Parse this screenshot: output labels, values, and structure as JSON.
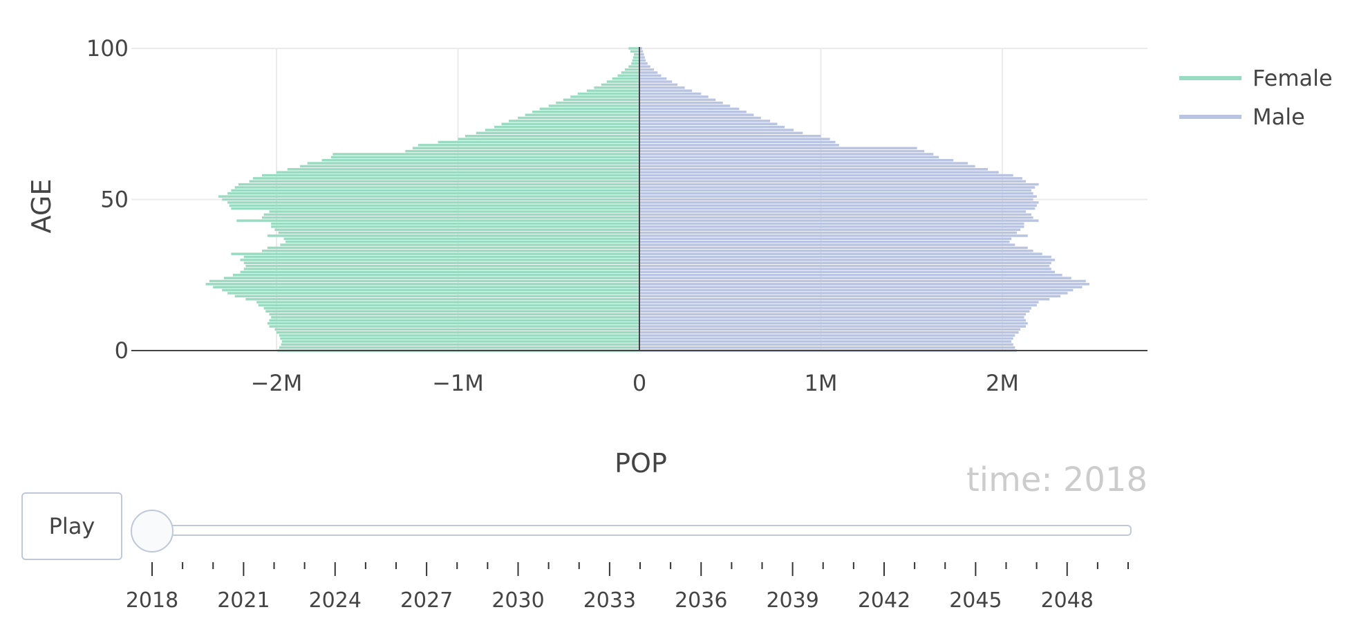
{
  "chart_data": {
    "type": "bar",
    "orientation": "horizontal",
    "barmode": "overlay",
    "xlabel": "POP",
    "ylabel": "AGE",
    "xlim": [
      -2800000,
      2800000
    ],
    "ylim": [
      0,
      100
    ],
    "x_ticks": [
      -2000000,
      -1000000,
      0,
      1000000,
      2000000
    ],
    "x_tick_labels": [
      "−2M",
      "−1M",
      "0",
      "1M",
      "2M"
    ],
    "y_ticks": [
      0,
      50,
      100
    ],
    "y_tick_labels": [
      "0",
      "50",
      "100"
    ],
    "grid": true,
    "legend_position": "top-right",
    "ages": [
      0,
      1,
      2,
      3,
      4,
      5,
      6,
      7,
      8,
      9,
      10,
      11,
      12,
      13,
      14,
      15,
      16,
      17,
      18,
      19,
      20,
      21,
      22,
      23,
      24,
      25,
      26,
      27,
      28,
      29,
      30,
      31,
      32,
      33,
      34,
      35,
      36,
      37,
      38,
      39,
      40,
      41,
      42,
      43,
      44,
      45,
      46,
      47,
      48,
      49,
      50,
      51,
      52,
      53,
      54,
      55,
      56,
      57,
      58,
      59,
      60,
      61,
      62,
      63,
      64,
      65,
      66,
      67,
      68,
      69,
      70,
      71,
      72,
      73,
      74,
      75,
      76,
      77,
      78,
      79,
      80,
      81,
      82,
      83,
      84,
      85,
      86,
      87,
      88,
      89,
      90,
      91,
      92,
      93,
      94,
      95,
      96,
      97,
      98,
      99,
      100
    ],
    "series": [
      {
        "name": "Female",
        "color": "#99dbc0",
        "values": [
          -1995000,
          -1985000,
          -1975000,
          -1970000,
          -1980000,
          -1985000,
          -2000000,
          -2010000,
          -2040000,
          -2050000,
          -2040000,
          -2030000,
          -2040000,
          -2060000,
          -2070000,
          -2100000,
          -2110000,
          -2170000,
          -2230000,
          -2270000,
          -2300000,
          -2350000,
          -2390000,
          -2370000,
          -2290000,
          -2240000,
          -2200000,
          -2180000,
          -2170000,
          -2180000,
          -2200000,
          -2180000,
          -2250000,
          -2080000,
          -2050000,
          -1980000,
          -1950000,
          -1960000,
          -2050000,
          -1990000,
          -2010000,
          -2030000,
          -2030000,
          -2220000,
          -2080000,
          -2070000,
          -2040000,
          -2250000,
          -2260000,
          -2270000,
          -2300000,
          -2320000,
          -2270000,
          -2250000,
          -2230000,
          -2210000,
          -2150000,
          -2130000,
          -2080000,
          -2000000,
          -1940000,
          -1870000,
          -1830000,
          -1750000,
          -1700000,
          -1690000,
          -1290000,
          -1250000,
          -1220000,
          -1110000,
          -1000000,
          -960000,
          -900000,
          -850000,
          -800000,
          -760000,
          -720000,
          -670000,
          -630000,
          -590000,
          -550000,
          -500000,
          -460000,
          -420000,
          -380000,
          -340000,
          -290000,
          -250000,
          -210000,
          -180000,
          -150000,
          -120000,
          -100000,
          -80000,
          -60000,
          -45000,
          -40000,
          -35000,
          -30000,
          -50000,
          -60000
        ]
      },
      {
        "name": "Male",
        "color": "#b9c3e2",
        "values": [
          2080000,
          2070000,
          2060000,
          2050000,
          2060000,
          2070000,
          2090000,
          2100000,
          2130000,
          2140000,
          2130000,
          2120000,
          2130000,
          2150000,
          2160000,
          2190000,
          2200000,
          2260000,
          2320000,
          2360000,
          2390000,
          2440000,
          2480000,
          2460000,
          2380000,
          2330000,
          2290000,
          2270000,
          2260000,
          2270000,
          2290000,
          2270000,
          2220000,
          2170000,
          2140000,
          2070000,
          2040000,
          2050000,
          2140000,
          2080000,
          2100000,
          2120000,
          2120000,
          2200000,
          2170000,
          2160000,
          2130000,
          2180000,
          2190000,
          2200000,
          2170000,
          2190000,
          2170000,
          2160000,
          2180000,
          2200000,
          2130000,
          2110000,
          2060000,
          1980000,
          1920000,
          1850000,
          1810000,
          1730000,
          1650000,
          1620000,
          1570000,
          1530000,
          1100000,
          1080000,
          1050000,
          1000000,
          900000,
          850000,
          800000,
          760000,
          720000,
          670000,
          630000,
          590000,
          550000,
          500000,
          460000,
          420000,
          380000,
          340000,
          290000,
          250000,
          210000,
          180000,
          150000,
          120000,
          100000,
          80000,
          60000,
          45000,
          35000,
          30000,
          25000,
          20000,
          15000
        ]
      }
    ],
    "animation": {
      "frame_label_prefix": "time: ",
      "current_frame": "2018",
      "button_label": "Play",
      "slider_start": 2018,
      "slider_end": 2050,
      "slider_value": 2018,
      "slider_tick_labels": [
        "2018",
        "2021",
        "2024",
        "2027",
        "2030",
        "2033",
        "2036",
        "2039",
        "2042",
        "2045",
        "2048"
      ]
    }
  }
}
